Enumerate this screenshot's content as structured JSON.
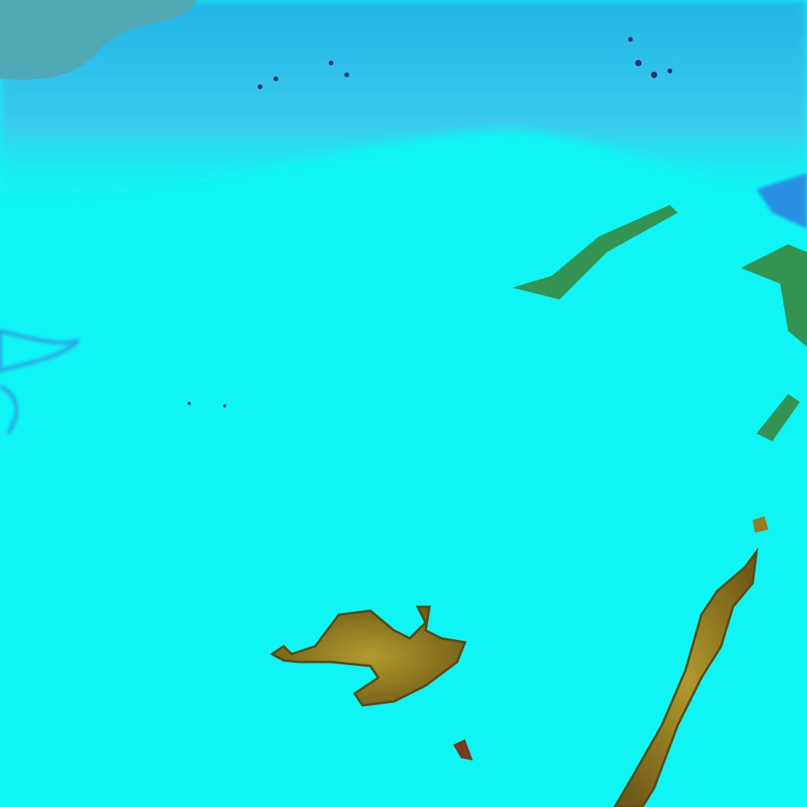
{
  "image": {
    "title": "",
    "colors": {
      "sea": "#4fa9b5",
      "snow_cover": "#0ff5f5",
      "cloud_band": "#2fc4ea",
      "deep_blue": "#1e8fd8",
      "land": "#9a8a2a",
      "land_dark": "#5a4a10",
      "vegetation": "#3f7a2a"
    }
  }
}
